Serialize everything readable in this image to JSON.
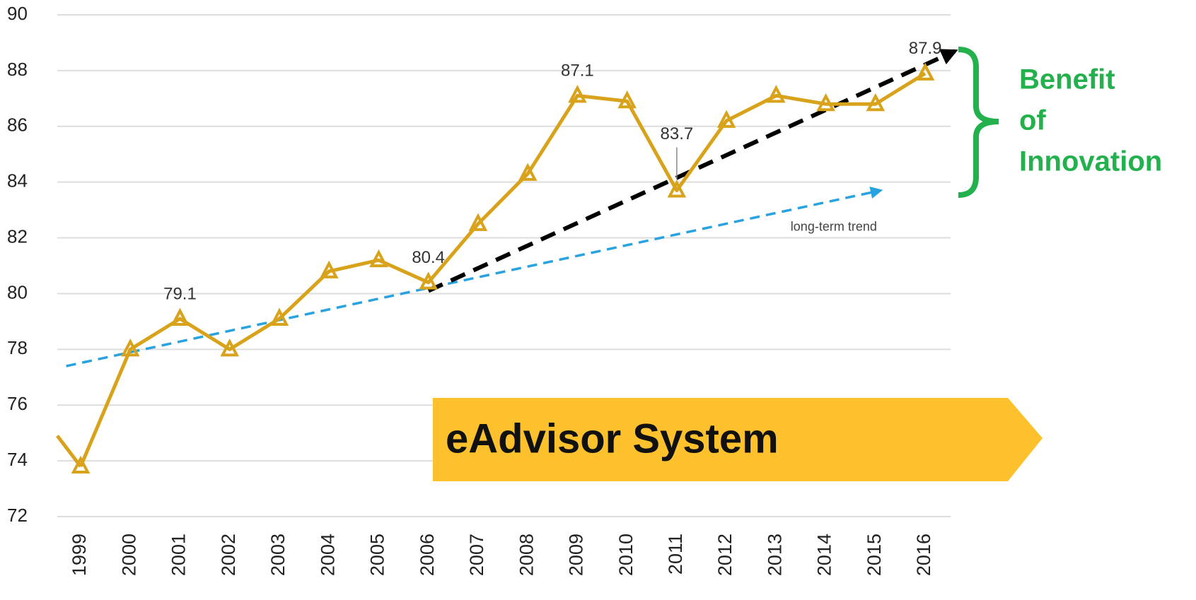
{
  "chart_data": {
    "type": "line",
    "categories": [
      "1999",
      "2000",
      "2001",
      "2002",
      "2003",
      "2004",
      "2005",
      "2006",
      "2007",
      "2008",
      "2009",
      "2010",
      "2011",
      "2012",
      "2013",
      "2014",
      "2015",
      "2016"
    ],
    "series": [
      {
        "color": "#d9a21b",
        "values": [
          73.8,
          78.0,
          79.1,
          78.0,
          79.1,
          80.8,
          81.2,
          80.4,
          82.5,
          84.3,
          87.1,
          86.9,
          83.7,
          86.2,
          87.1,
          86.8,
          86.8,
          87.9
        ],
        "value_labels": [
          null,
          null,
          "79.1",
          null,
          null,
          null,
          null,
          "80.4",
          null,
          null,
          "87.1",
          null,
          "83.7",
          null,
          null,
          null,
          null,
          "87.9"
        ]
      }
    ],
    "ylim": [
      72,
      90
    ],
    "yticks": [
      72,
      74,
      76,
      78,
      80,
      82,
      84,
      86,
      88,
      90
    ],
    "grid": true,
    "trends": [
      {
        "label": "long-term trend",
        "color": "#29a3e0",
        "x": [
          -0.29,
          16.1
        ],
        "values": [
          77.4,
          83.7
        ]
      },
      {
        "color": "#000000",
        "x": [
          7,
          17.6
        ],
        "values": [
          80.1,
          88.7
        ]
      }
    ],
    "banner": "eAdvisor System",
    "bracket_text": [
      "Benefit",
      "of",
      "Innovation"
    ]
  }
}
